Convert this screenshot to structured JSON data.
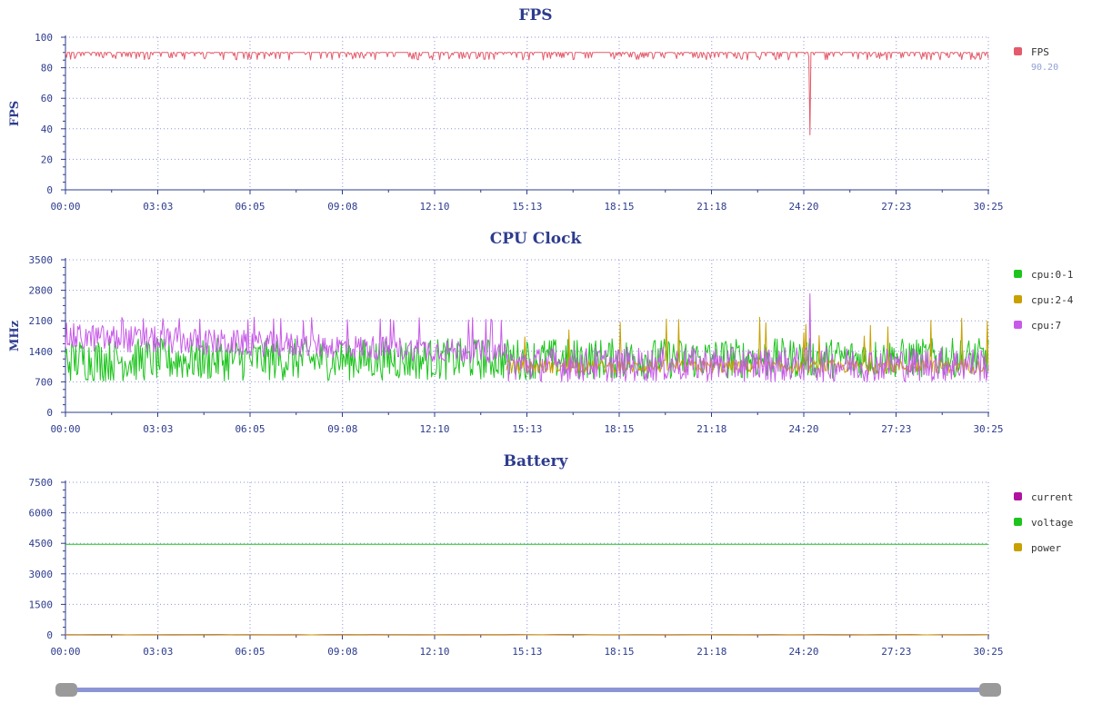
{
  "chart_data": [
    {
      "type": "line",
      "title": "FPS",
      "ylabel": "FPS",
      "ylim": [
        0,
        100
      ],
      "yticks": [
        "0",
        "20",
        "40",
        "60",
        "80",
        "100"
      ],
      "xlim": [
        "00:00",
        "30:25"
      ],
      "xticks": [
        "00:00",
        "03:03",
        "06:05",
        "09:08",
        "12:10",
        "15:13",
        "18:15",
        "21:18",
        "24:20",
        "27:23",
        "30:25"
      ],
      "grid": true,
      "legend_position": "right",
      "series": [
        {
          "name": "FPS",
          "color": "#e45a6a",
          "current_value": "90.20",
          "description_values": {
            "baseline": 90,
            "typical_min": 85,
            "dip_time": "24:32",
            "dip_value": 36
          }
        }
      ]
    },
    {
      "type": "line",
      "title": "CPU Clock",
      "ylabel": "MHz",
      "ylim": [
        0,
        3500
      ],
      "yticks": [
        "0",
        "700",
        "1400",
        "2100",
        "2800",
        "3500"
      ],
      "xlim": [
        "00:00",
        "30:25"
      ],
      "xticks": [
        "00:00",
        "03:03",
        "06:05",
        "09:08",
        "12:10",
        "15:13",
        "18:15",
        "21:18",
        "24:20",
        "27:23",
        "30:25"
      ],
      "grid": true,
      "legend_position": "right",
      "series": [
        {
          "name": "cpu:0-1",
          "color": "#1ec41e",
          "range_start": [
            700,
            1700
          ],
          "range_end": [
            800,
            1700
          ]
        },
        {
          "name": "cpu:2-4",
          "color": "#c8a000",
          "range_start": [
            900,
            1200
          ],
          "range_end": [
            900,
            1200
          ],
          "appears_from": "14:30"
        },
        {
          "name": "cpu:7",
          "color": "#c85ae8",
          "range_start": [
            1400,
            2050
          ],
          "range_end": [
            800,
            1200
          ],
          "spike_time": "24:32",
          "spike_value": 2720
        }
      ]
    },
    {
      "type": "line",
      "title": "Battery",
      "ylabel": "",
      "ylim": [
        0,
        7500
      ],
      "yticks": [
        "0",
        "1500",
        "3000",
        "4500",
        "6000",
        "7500"
      ],
      "xlim": [
        "00:00",
        "30:25"
      ],
      "xticks": [
        "00:00",
        "03:03",
        "06:05",
        "09:08",
        "12:10",
        "15:13",
        "18:15",
        "21:18",
        "24:20",
        "27:23",
        "30:25"
      ],
      "grid": true,
      "legend_position": "right",
      "series": [
        {
          "name": "current",
          "color": "#b0139f",
          "level": 0
        },
        {
          "name": "voltage",
          "color": "#1ec41e",
          "level": 4450
        },
        {
          "name": "power",
          "color": "#c8a000",
          "level": 0
        }
      ]
    }
  ]
}
